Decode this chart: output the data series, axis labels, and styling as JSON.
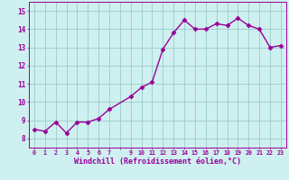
{
  "x": [
    0,
    1,
    2,
    3,
    4,
    5,
    6,
    7,
    9,
    10,
    11,
    12,
    13,
    14,
    15,
    16,
    17,
    18,
    19,
    20,
    21,
    22,
    23
  ],
  "y": [
    8.5,
    8.4,
    8.9,
    8.3,
    8.9,
    8.9,
    9.1,
    9.6,
    10.3,
    10.8,
    11.1,
    12.9,
    13.8,
    14.5,
    14.0,
    14.0,
    14.3,
    14.2,
    14.6,
    14.2,
    14.0,
    13.0,
    13.1
  ],
  "xlabel": "Windchill (Refroidissement éolien,°C)",
  "ylim": [
    7.5,
    15.5
  ],
  "xlim": [
    -0.5,
    23.5
  ],
  "yticks": [
    8,
    9,
    10,
    11,
    12,
    13,
    14,
    15
  ],
  "bg_color": "#cff0f0",
  "line_color": "#990099",
  "grid_color": "#99cccc",
  "xlabel_color": "#990099",
  "tick_color": "#990099",
  "marker": "D",
  "markersize": 2.5,
  "linewidth": 1.0
}
